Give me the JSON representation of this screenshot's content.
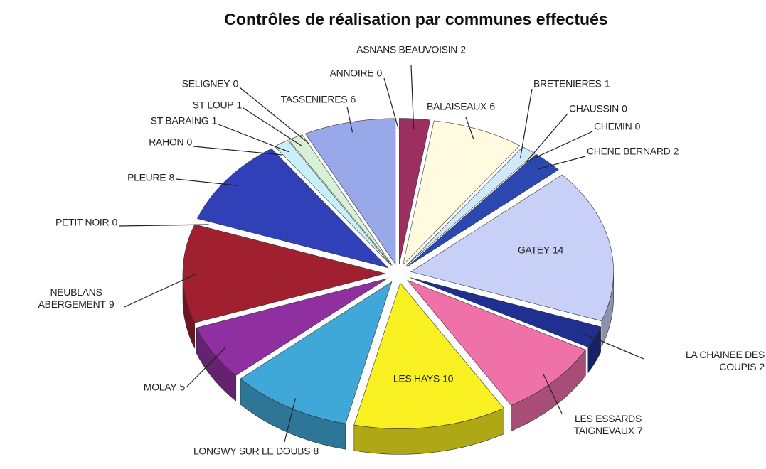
{
  "chart_data": {
    "type": "pie3d",
    "title": "Contrôles de réalisation par communes effectués",
    "categories": [
      "ASNANS BEAUVOISIN",
      "BALAISEAUX",
      "BRETENIERES",
      "CHAUSSIN",
      "CHEMIN",
      "CHENE BERNARD",
      "GATEY",
      "LA CHAINEE DES COUPIS",
      "LES ESSARDS TAIGNEVAUX",
      "LES HAYS",
      "LONGWY SUR LE DOUBS",
      "MOLAY",
      "NEUBLANS ABERGEMENT",
      "PETIT NOIR",
      "PLEURE",
      "RAHON",
      "ST BARAING",
      "ST LOUP",
      "SELIGNEY",
      "TASSENIERES",
      "ANNOIRE"
    ],
    "values": [
      2,
      6,
      1,
      0,
      0,
      2,
      14,
      2,
      7,
      10,
      8,
      5,
      9,
      0,
      8,
      0,
      1,
      1,
      0,
      6,
      0
    ],
    "colors": [
      "#9b3060",
      "#fffae0",
      "#d0e8f8",
      "#d0e8f8",
      "#2a48b0",
      "#2a48b0",
      "#c8d0f8",
      "#203090",
      "#f070a8",
      "#f8f020",
      "#40a8d8",
      "#9030a0",
      "#a02030",
      "#a02030",
      "#3040b8",
      "#3040b8",
      "#c8f0f8",
      "#d8f0d8",
      "#d8f0d8",
      "#98a8e8",
      "#98a8e8"
    ]
  }
}
